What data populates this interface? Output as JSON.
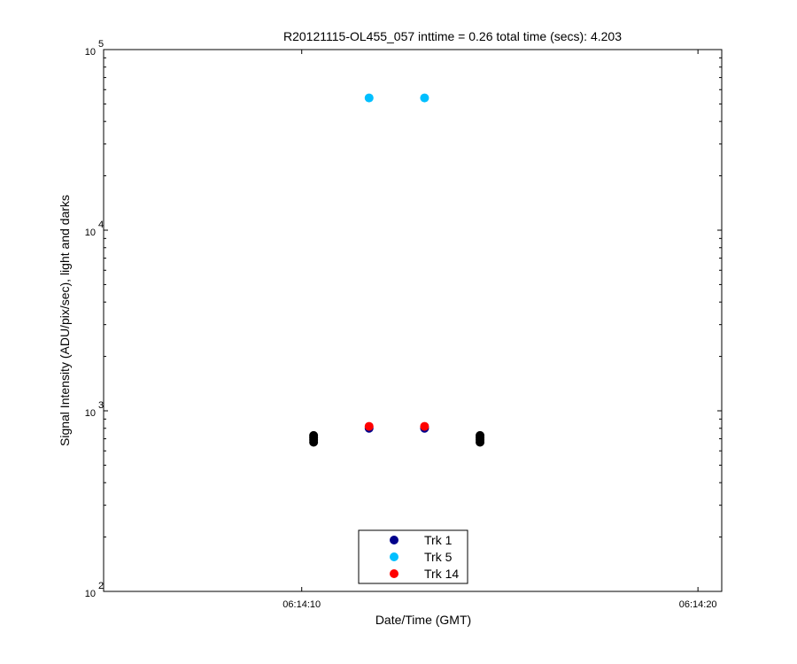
{
  "chart_data": {
    "type": "scatter",
    "title": "R20121115-OL455_057 inttime = 0.26 total time (secs): 4.203",
    "xlabel": "Date/Time (GMT)",
    "ylabel": "Signal Intensity (ADU/pix/sec), light and darks",
    "y_scale": "log",
    "ylim": [
      100,
      100000
    ],
    "x_unit": "seconds after 06:14:00 GMT",
    "xlim": [
      5,
      20.6
    ],
    "x_ticks": [
      {
        "value": 10,
        "label": "06:14:10"
      },
      {
        "value": 20,
        "label": "06:14:20"
      }
    ],
    "y_ticks": [
      {
        "value": 100,
        "base": "10",
        "exp": "2"
      },
      {
        "value": 1000,
        "base": "10",
        "exp": "3"
      },
      {
        "value": 10000,
        "base": "10",
        "exp": "4"
      },
      {
        "value": 100000,
        "base": "10",
        "exp": "5"
      }
    ],
    "grid": false,
    "legend_position": "bottom-center",
    "series": [
      {
        "name": "Trk 1",
        "color": "#00008B",
        "x": [
          11.7,
          13.1
        ],
        "y": [
          800,
          800
        ]
      },
      {
        "name": "Trk 5",
        "color": "#00BFFF",
        "x": [
          11.7,
          13.1
        ],
        "y": [
          54000,
          54000
        ]
      },
      {
        "name": "Trk 14",
        "color": "#FF0000",
        "x": [
          11.7,
          13.1
        ],
        "y": [
          820,
          820
        ]
      }
    ],
    "dark_points": {
      "color": "#000000",
      "x": [
        10.3,
        10.3,
        10.3,
        10.3,
        14.5,
        14.5,
        14.5,
        14.5
      ],
      "y": [
        670,
        690,
        710,
        730,
        670,
        690,
        710,
        730
      ]
    }
  }
}
